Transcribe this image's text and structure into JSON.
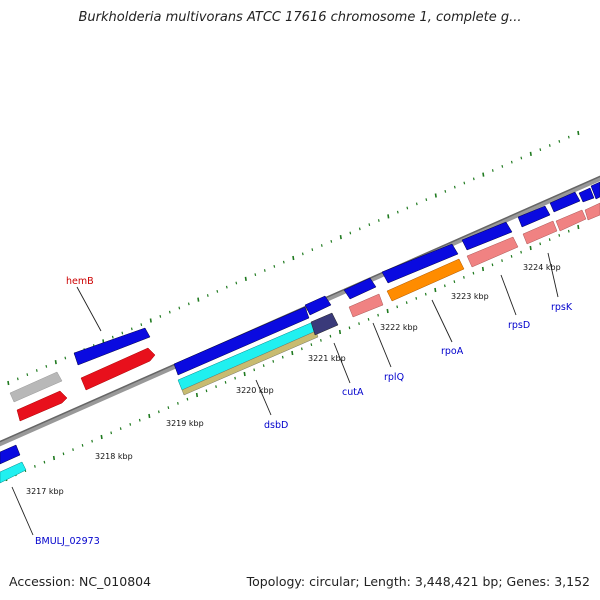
{
  "title": "Burkholderia multivorans ATCC 17616 chromosome 1, complete g...",
  "footer": {
    "accession": "Accession: NC_010804",
    "summary": "Topology: circular; Length: 3,448,421 bp; Genes: 3,152"
  },
  "colors": {
    "backbone": "#7a7a7a",
    "tick": "#1f7a1f",
    "cds": "#0a0ae0",
    "gene": "#e8101c",
    "pseudo": "#b0b0b0",
    "trna": "#f08282",
    "cyan": "#20f0f0",
    "khaki": "#c8bb70",
    "navy": "#3a3a7a",
    "orange": "#ff8c00",
    "blue_label": "#0000cc",
    "red_label": "#cc0000"
  },
  "scale": {
    "labels": [
      {
        "text": "3217 kbp",
        "kbp": 3217
      },
      {
        "text": "3218 kbp",
        "kbp": 3218
      },
      {
        "text": "3219 kbp",
        "kbp": 3219
      },
      {
        "text": "3220 kbp",
        "kbp": 3220
      },
      {
        "text": "3221 kbp",
        "kbp": 3221
      },
      {
        "text": "3222 kbp",
        "kbp": 3222
      },
      {
        "text": "3223 kbp",
        "kbp": 3223
      },
      {
        "text": "3224 kbp",
        "kbp": 3224
      }
    ]
  },
  "gene_labels": [
    {
      "text": "hemB",
      "color": "red_label"
    },
    {
      "text": "dsbD",
      "color": "blue_label"
    },
    {
      "text": "cutA",
      "color": "blue_label"
    },
    {
      "text": "rplQ",
      "color": "blue_label"
    },
    {
      "text": "rpoA",
      "color": "blue_label"
    },
    {
      "text": "rpsD",
      "color": "blue_label"
    },
    {
      "text": "rpsK",
      "color": "blue_label"
    },
    {
      "text": "BMULJ_02973",
      "color": "blue_label"
    }
  ]
}
